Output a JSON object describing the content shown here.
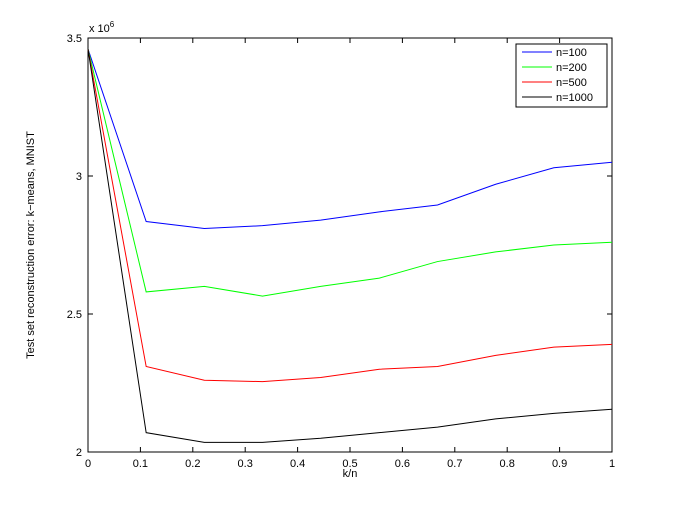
{
  "chart_data": {
    "type": "line",
    "xlabel": "k/n",
    "ylabel": "Test set reconstruction error: k−means, MNIST",
    "exponent_label": "x 10",
    "exponent_power": "6",
    "xlim": [
      0,
      1
    ],
    "ylim": [
      2.0,
      3.5
    ],
    "x_ticks": [
      "0",
      "0.1",
      "0.2",
      "0.3",
      "0.4",
      "0.5",
      "0.6",
      "0.7",
      "0.8",
      "0.9",
      "1"
    ],
    "y_ticks": [
      "2",
      "2.5",
      "3",
      "3.5"
    ],
    "legend_position": "top-right",
    "x": [
      0,
      0.111,
      0.222,
      0.333,
      0.444,
      0.556,
      0.667,
      0.778,
      0.889,
      1.0
    ],
    "series": [
      {
        "name": "n=100",
        "color": "#0000ff",
        "values": [
          3.46,
          2.835,
          2.81,
          2.82,
          2.84,
          2.87,
          2.895,
          2.97,
          3.03,
          3.05
        ]
      },
      {
        "name": "n=200",
        "color": "#00ff00",
        "values": [
          3.46,
          2.58,
          2.6,
          2.565,
          2.6,
          2.63,
          2.69,
          2.725,
          2.75,
          2.76
        ]
      },
      {
        "name": "n=500",
        "color": "#ff0000",
        "values": [
          3.46,
          2.31,
          2.26,
          2.255,
          2.27,
          2.3,
          2.31,
          2.35,
          2.38,
          2.39
        ]
      },
      {
        "name": "n=1000",
        "color": "#000000",
        "values": [
          3.46,
          2.07,
          2.035,
          2.035,
          2.05,
          2.07,
          2.09,
          2.12,
          2.14,
          2.155
        ]
      }
    ]
  }
}
